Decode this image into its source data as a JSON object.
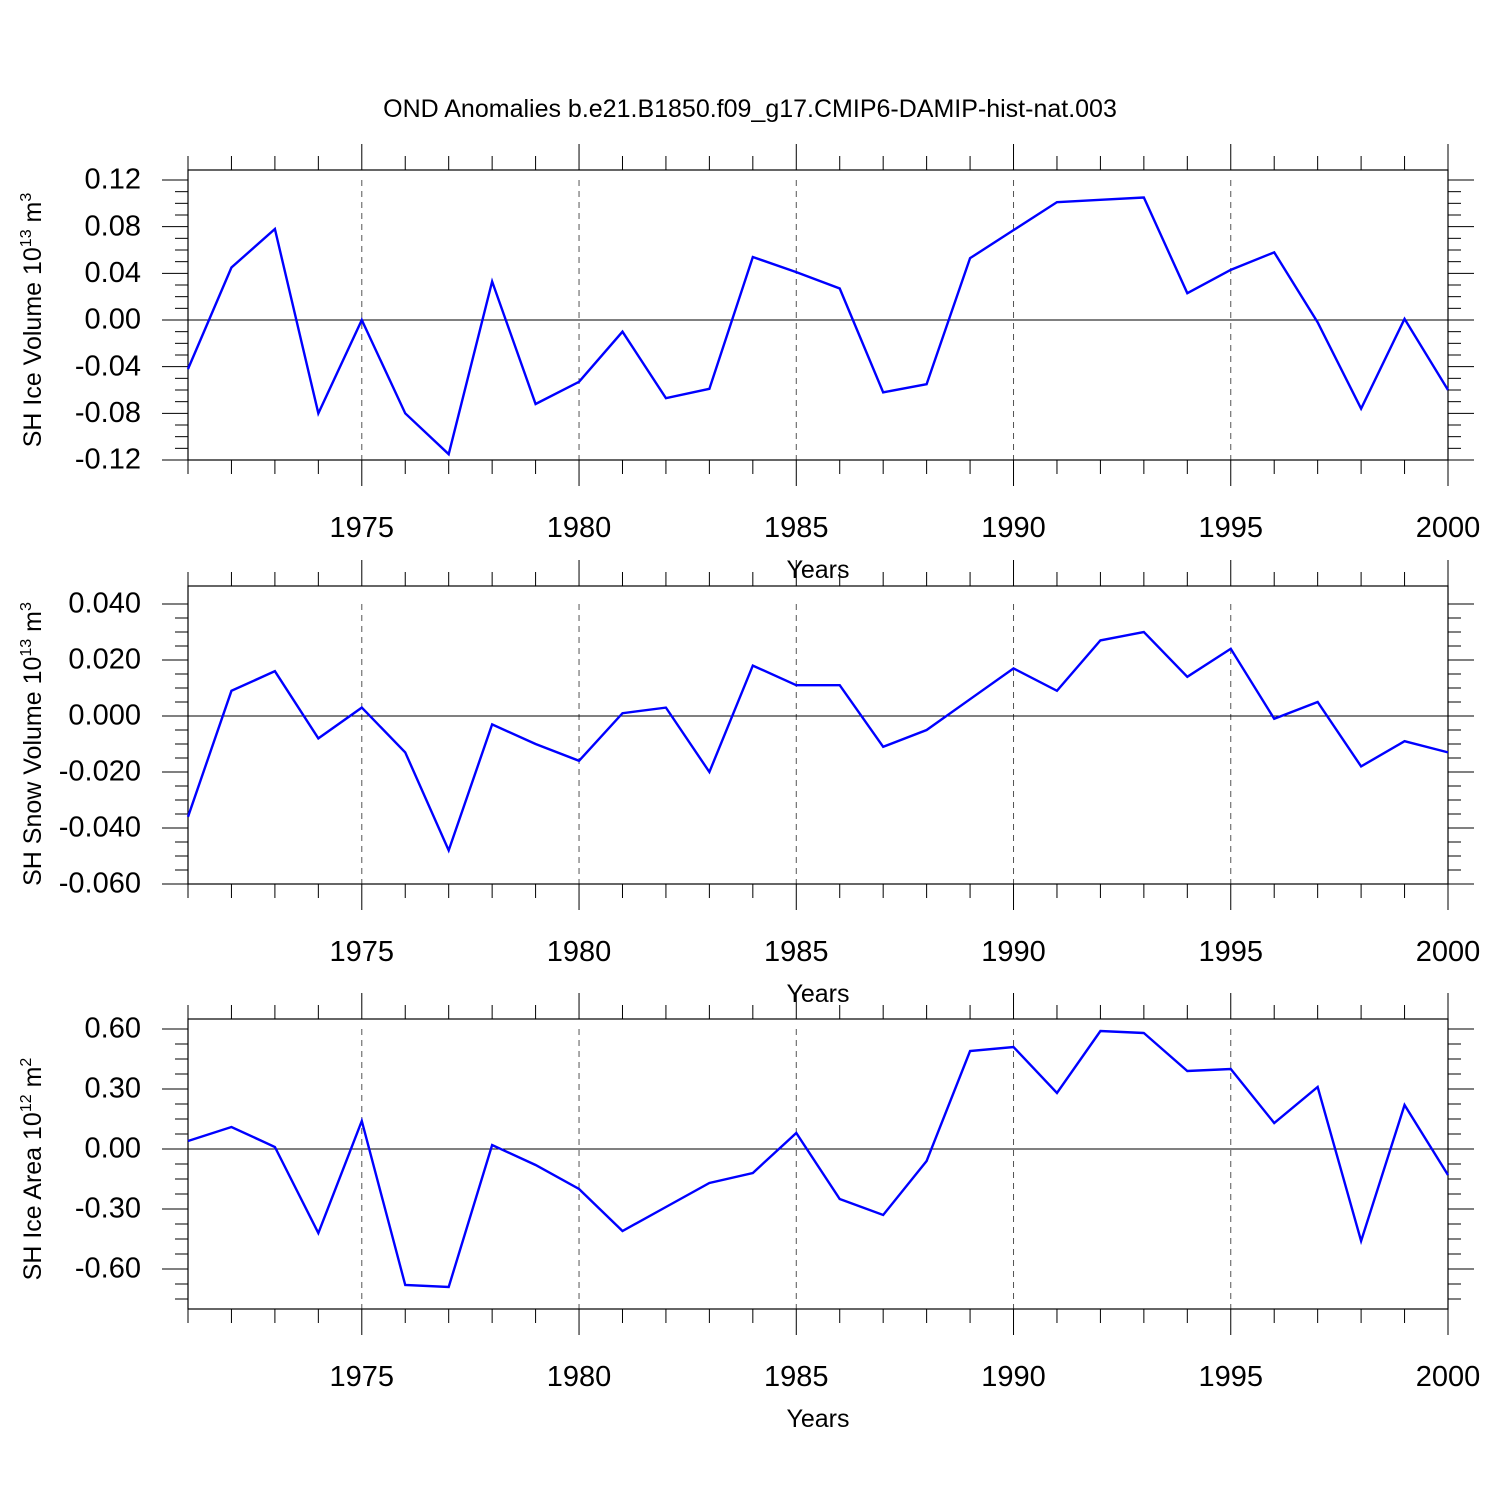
{
  "title": "OND Anomalies b.e21.B1850.f09_g17.CMIP6-DAMIP-hist-nat.003",
  "chart_data": [
    {
      "type": "line",
      "ylabel": {
        "text": "SH Ice Volume 10",
        "exp": "13",
        "unit": " m",
        "unit_exp": "3"
      },
      "xlabel": "Years",
      "xlim": [
        1971,
        2000
      ],
      "ylim": [
        -0.12,
        0.12
      ],
      "yticks": [
        "-0.12",
        "-0.08",
        "-0.04",
        "0.00",
        "0.04",
        "0.08",
        "0.12"
      ],
      "xticks": [
        "1975",
        "1980",
        "1985",
        "1990",
        "1995",
        "2000"
      ],
      "x": [
        1971,
        1972,
        1973,
        1974,
        1975,
        1976,
        1977,
        1978,
        1979,
        1980,
        1981,
        1982,
        1983,
        1984,
        1985,
        1986,
        1987,
        1988,
        1989,
        1990,
        1991,
        1992,
        1993,
        1994,
        1995,
        1996,
        1997,
        1998,
        1999,
        2000
      ],
      "series": [
        {
          "values": [
            -0.042,
            0.045,
            0.078,
            -0.08,
            0.0,
            -0.08,
            -0.115,
            0.033,
            -0.072,
            -0.053,
            -0.01,
            -0.067,
            -0.059,
            0.054,
            0.041,
            0.027,
            -0.062,
            -0.055,
            0.053,
            0.077,
            0.101,
            0.103,
            0.105,
            0.023,
            0.043,
            0.058,
            -0.002,
            -0.076,
            0.001,
            -0.06
          ]
        }
      ]
    },
    {
      "type": "line",
      "ylabel": {
        "text": "SH Snow Volume 10",
        "exp": "13",
        "unit": " m",
        "unit_exp": "3"
      },
      "xlabel": "Years",
      "xlim": [
        1971,
        2000
      ],
      "ylim": [
        -0.06,
        0.04
      ],
      "yticks": [
        "-0.060",
        "-0.040",
        "-0.020",
        "0.000",
        "0.020",
        "0.040"
      ],
      "xticks": [
        "1975",
        "1980",
        "1985",
        "1990",
        "1995",
        "2000"
      ],
      "x": [
        1971,
        1972,
        1973,
        1974,
        1975,
        1976,
        1977,
        1978,
        1979,
        1980,
        1981,
        1982,
        1983,
        1984,
        1985,
        1986,
        1987,
        1988,
        1989,
        1990,
        1991,
        1992,
        1993,
        1994,
        1995,
        1996,
        1997,
        1998,
        1999,
        2000
      ],
      "series": [
        {
          "values": [
            -0.036,
            0.009,
            0.016,
            -0.008,
            0.003,
            -0.013,
            -0.048,
            -0.003,
            -0.01,
            -0.016,
            0.001,
            0.003,
            -0.02,
            0.018,
            0.011,
            0.011,
            -0.011,
            -0.005,
            0.006,
            0.017,
            0.009,
            0.027,
            0.03,
            0.014,
            0.024,
            -0.001,
            0.005,
            -0.018,
            -0.009,
            -0.013
          ]
        }
      ]
    },
    {
      "type": "line",
      "ylabel": {
        "text": "SH Ice Area 10",
        "exp": "12",
        "unit": " m",
        "unit_exp": "2"
      },
      "xlabel": "Years",
      "xlim": [
        1971,
        2000
      ],
      "ylim": [
        -0.8,
        0.6
      ],
      "yticks": [
        "-0.60",
        "-0.30",
        "0.00",
        "0.30",
        "0.60"
      ],
      "xticks": [
        "1975",
        "1980",
        "1985",
        "1990",
        "1995",
        "2000"
      ],
      "x": [
        1971,
        1972,
        1973,
        1974,
        1975,
        1976,
        1977,
        1978,
        1979,
        1980,
        1981,
        1982,
        1983,
        1984,
        1985,
        1986,
        1987,
        1988,
        1989,
        1990,
        1991,
        1992,
        1993,
        1994,
        1995,
        1996,
        1997,
        1998,
        1999,
        2000
      ],
      "series": [
        {
          "values": [
            0.04,
            0.11,
            0.01,
            -0.42,
            0.14,
            -0.68,
            -0.69,
            0.02,
            -0.08,
            -0.2,
            -0.41,
            -0.29,
            -0.17,
            -0.12,
            0.08,
            -0.25,
            -0.33,
            -0.06,
            0.49,
            0.51,
            0.28,
            0.59,
            0.58,
            0.39,
            0.4,
            0.13,
            0.31,
            -0.46,
            0.22,
            -0.13
          ]
        }
      ]
    }
  ]
}
